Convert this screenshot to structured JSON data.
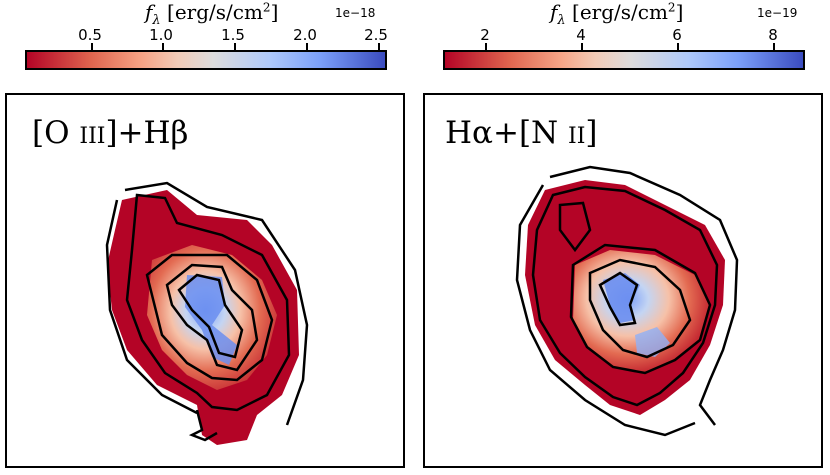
{
  "panels": [
    {
      "colorbar": {
        "title_prefix": "f",
        "title_sub": "λ",
        "title_unit": " [erg/s/cm",
        "title_sup": "2",
        "title_close": "]",
        "exponent": "1e−18",
        "ticks": [
          "0.5",
          "1.0",
          "1.5",
          "2.0",
          "2.5"
        ]
      },
      "label_main": "[O ",
      "label_ion": "III",
      "label_rest": "]+Hβ"
    },
    {
      "colorbar": {
        "title_prefix": "f",
        "title_sub": "λ",
        "title_unit": " [erg/s/cm",
        "title_sup": "2",
        "title_close": "]",
        "exponent": "1e−19",
        "ticks": [
          "2",
          "4",
          "6",
          "8"
        ]
      },
      "label_main": "Hα+[N ",
      "label_ion": "II",
      "label_rest": "]"
    }
  ],
  "colormap": {
    "low": "#b40426",
    "mid": "#dddcdc",
    "high": "#3b4cc0"
  }
}
